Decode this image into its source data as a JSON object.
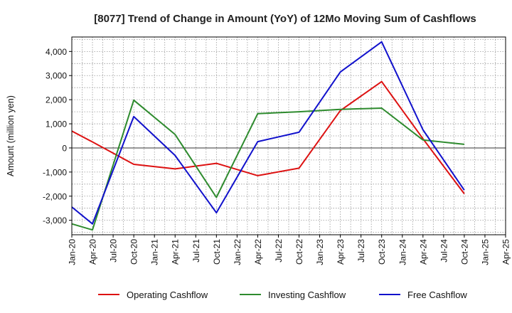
{
  "chart_data": {
    "type": "line",
    "title": "[8077]  Trend of Change in Amount (YoY) of 12Mo Moving Sum of Cashflows",
    "xlabel": "",
    "ylabel": "Amount (million yen)",
    "ylim": [
      -3600,
      4600
    ],
    "yticks": [
      -3000,
      -2000,
      -1000,
      0,
      1000,
      2000,
      3000,
      4000
    ],
    "ytick_labels": [
      "-3,000",
      "-2,000",
      "-1,000",
      "0",
      "1,000",
      "2,000",
      "3,000",
      "4,000"
    ],
    "categories": [
      "Jan-20",
      "Apr-20",
      "Jul-20",
      "Oct-20",
      "Jan-21",
      "Apr-21",
      "Jul-21",
      "Oct-21",
      "Jan-22",
      "Apr-22",
      "Jul-22",
      "Oct-22",
      "Jan-23",
      "Apr-23",
      "Jul-23",
      "Oct-23",
      "Jan-24",
      "Apr-24",
      "Jul-24",
      "Oct-24",
      "Jan-25",
      "Apr-25"
    ],
    "grid": true,
    "legend_position": "bottom",
    "series": [
      {
        "name": "Operating Cashflow",
        "color": "#dd1111",
        "values": [
          700,
          250,
          null,
          -680,
          null,
          -870,
          null,
          -640,
          null,
          -1150,
          null,
          -840,
          null,
          1550,
          null,
          2750,
          null,
          380,
          null,
          -1900,
          null,
          null
        ]
      },
      {
        "name": "Investing Cashflow",
        "color": "#2e8b2e",
        "values": [
          -3150,
          -3400,
          null,
          1980,
          null,
          560,
          null,
          -2050,
          null,
          1420,
          null,
          1500,
          null,
          1600,
          null,
          1650,
          null,
          330,
          null,
          150,
          null,
          null
        ]
      },
      {
        "name": "Free Cashflow",
        "color": "#1111cc",
        "values": [
          -2450,
          -3150,
          null,
          1300,
          null,
          -310,
          null,
          -2690,
          null,
          260,
          null,
          650,
          null,
          3150,
          null,
          4400,
          null,
          750,
          null,
          -1750,
          null,
          null
        ]
      }
    ]
  }
}
